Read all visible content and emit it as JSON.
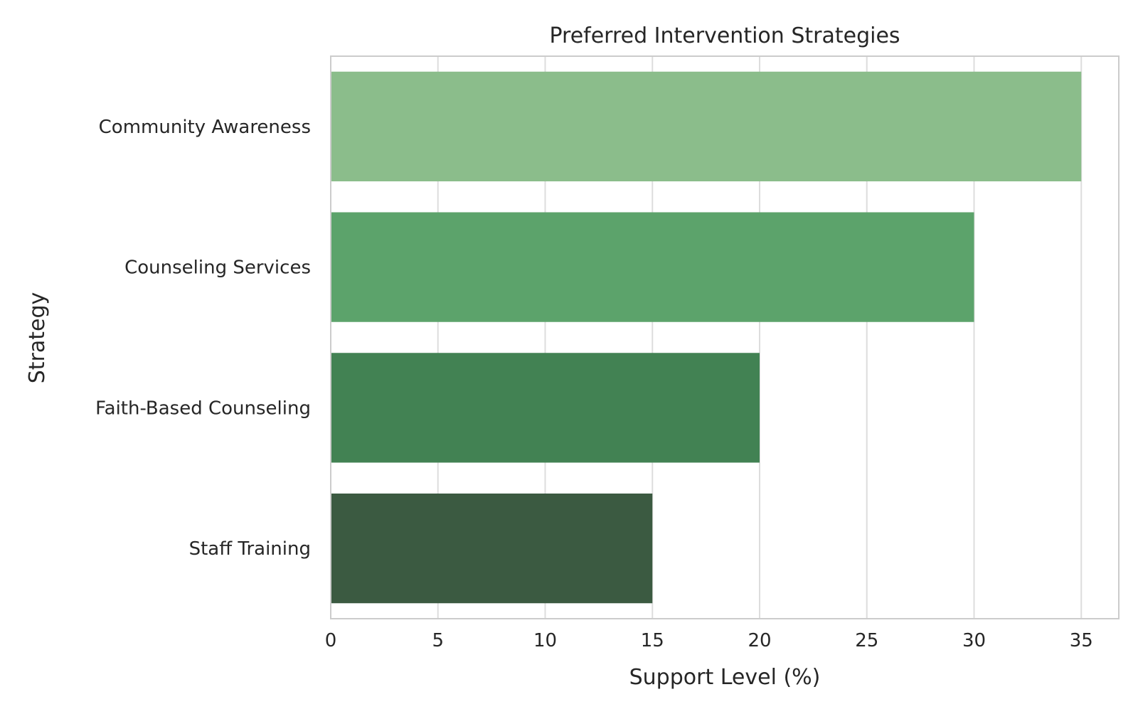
{
  "chart_data": {
    "type": "bar",
    "orientation": "horizontal",
    "title": "Preferred Intervention Strategies",
    "xlabel": "Support Level (%)",
    "ylabel": "Strategy",
    "categories": [
      "Community Awareness",
      "Counseling Services",
      "Faith-Based Counseling",
      "Staff Training"
    ],
    "values": [
      35,
      30,
      20,
      15
    ],
    "colors": [
      "#8bbd8b",
      "#5ca36b",
      "#428253",
      "#3b5a41"
    ],
    "xlim": [
      0,
      36.75
    ],
    "xticks": [
      0,
      5,
      10,
      15,
      20,
      25,
      30,
      35
    ],
    "grid": true,
    "grid_color": "#dddddd",
    "frame_color": "#cccccc",
    "legend": "none"
  }
}
